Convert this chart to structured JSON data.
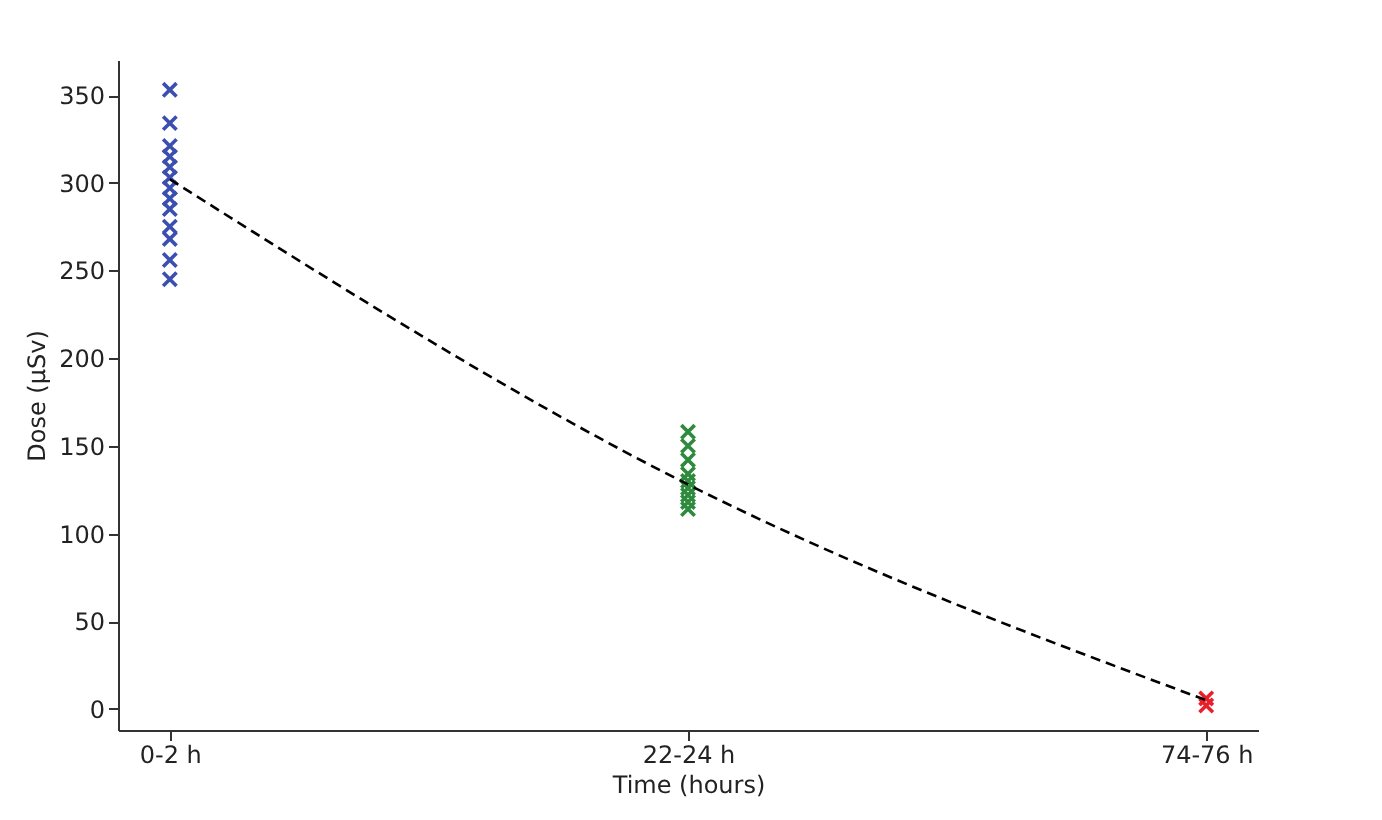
{
  "chart_data": {
    "type": "scatter",
    "xlabel": "Time (hours)",
    "ylabel": "Dose (µSv)",
    "categories": [
      "0-2 h",
      "22-24 h",
      "74-76 h"
    ],
    "ylim": [
      -12,
      370
    ],
    "yticks": [
      0,
      50,
      100,
      150,
      200,
      250,
      300,
      350
    ],
    "grid": false,
    "marker": "cross",
    "series": [
      {
        "color": "#3b4fb0",
        "x": [
          "0-2 h",
          "0-2 h",
          "0-2 h",
          "0-2 h",
          "0-2 h",
          "0-2 h",
          "0-2 h",
          "0-2 h",
          "0-2 h",
          "0-2 h",
          "0-2 h",
          "0-2 h",
          "0-2 h"
        ],
        "values": [
          353,
          334,
          321,
          315,
          309,
          303,
          297,
          291,
          285,
          275,
          268,
          256,
          245
        ]
      },
      {
        "color": "#2e8b3e",
        "x": [
          "22-24 h",
          "22-24 h",
          "22-24 h",
          "22-24 h",
          "22-24 h",
          "22-24 h",
          "22-24 h",
          "22-24 h",
          "22-24 h"
        ],
        "values": [
          158,
          150,
          142,
          134,
          130,
          126,
          122,
          118,
          114
        ]
      },
      {
        "color": "#e8202a",
        "x": [
          "74-76 h",
          "74-76 h"
        ],
        "values": [
          6,
          2
        ]
      },
      {
        "type": "line",
        "color": "#000000",
        "line_style": "dashed",
        "marker": "none",
        "values": [
          302,
          128,
          5
        ]
      }
    ]
  }
}
